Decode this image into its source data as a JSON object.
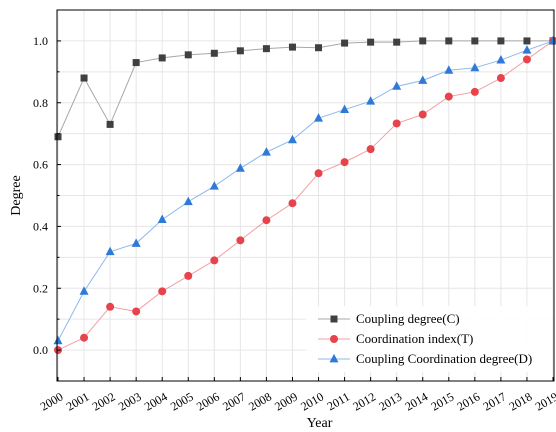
{
  "chart_data": {
    "type": "line",
    "title": "",
    "xlabel": "Year",
    "ylabel": "Degree",
    "x": [
      "2000",
      "2001",
      "2002",
      "2003",
      "2004",
      "2005",
      "2006",
      "2007",
      "2008",
      "2009",
      "2010",
      "2011",
      "2012",
      "2013",
      "2014",
      "2015",
      "2016",
      "2017",
      "2018",
      "2019"
    ],
    "ylim": [
      -0.1,
      1.1
    ],
    "yticks": [
      "0.0",
      "0.2",
      "0.4",
      "0.6",
      "0.8",
      "1.0"
    ],
    "grid": true,
    "legend_position": "bottom-right",
    "series": [
      {
        "name": "Coupling degree(C)",
        "marker": "square",
        "color": "#404040",
        "line_color": "#a8a8a8",
        "values": [
          0.69,
          0.88,
          0.73,
          0.93,
          0.945,
          0.955,
          0.96,
          0.968,
          0.975,
          0.98,
          0.978,
          0.993,
          0.996,
          0.996,
          1.0,
          1.0,
          1.0,
          1.0,
          1.0,
          1.0
        ]
      },
      {
        "name": "Coordination index(T)",
        "marker": "circle",
        "color": "#e8434c",
        "line_color": "#f2a0a4",
        "values": [
          0.0,
          0.04,
          0.14,
          0.125,
          0.19,
          0.24,
          0.29,
          0.355,
          0.42,
          0.475,
          0.572,
          0.608,
          0.65,
          0.733,
          0.762,
          0.82,
          0.835,
          0.88,
          0.94,
          1.0
        ]
      },
      {
        "name": "Coupling Coordination degree(D)",
        "marker": "triangle",
        "color": "#2f7ad6",
        "line_color": "#8cb8ec",
        "values": [
          0.03,
          0.19,
          0.318,
          0.345,
          0.422,
          0.48,
          0.53,
          0.588,
          0.64,
          0.68,
          0.75,
          0.778,
          0.805,
          0.853,
          0.872,
          0.905,
          0.913,
          0.938,
          0.97,
          1.0
        ]
      }
    ]
  }
}
